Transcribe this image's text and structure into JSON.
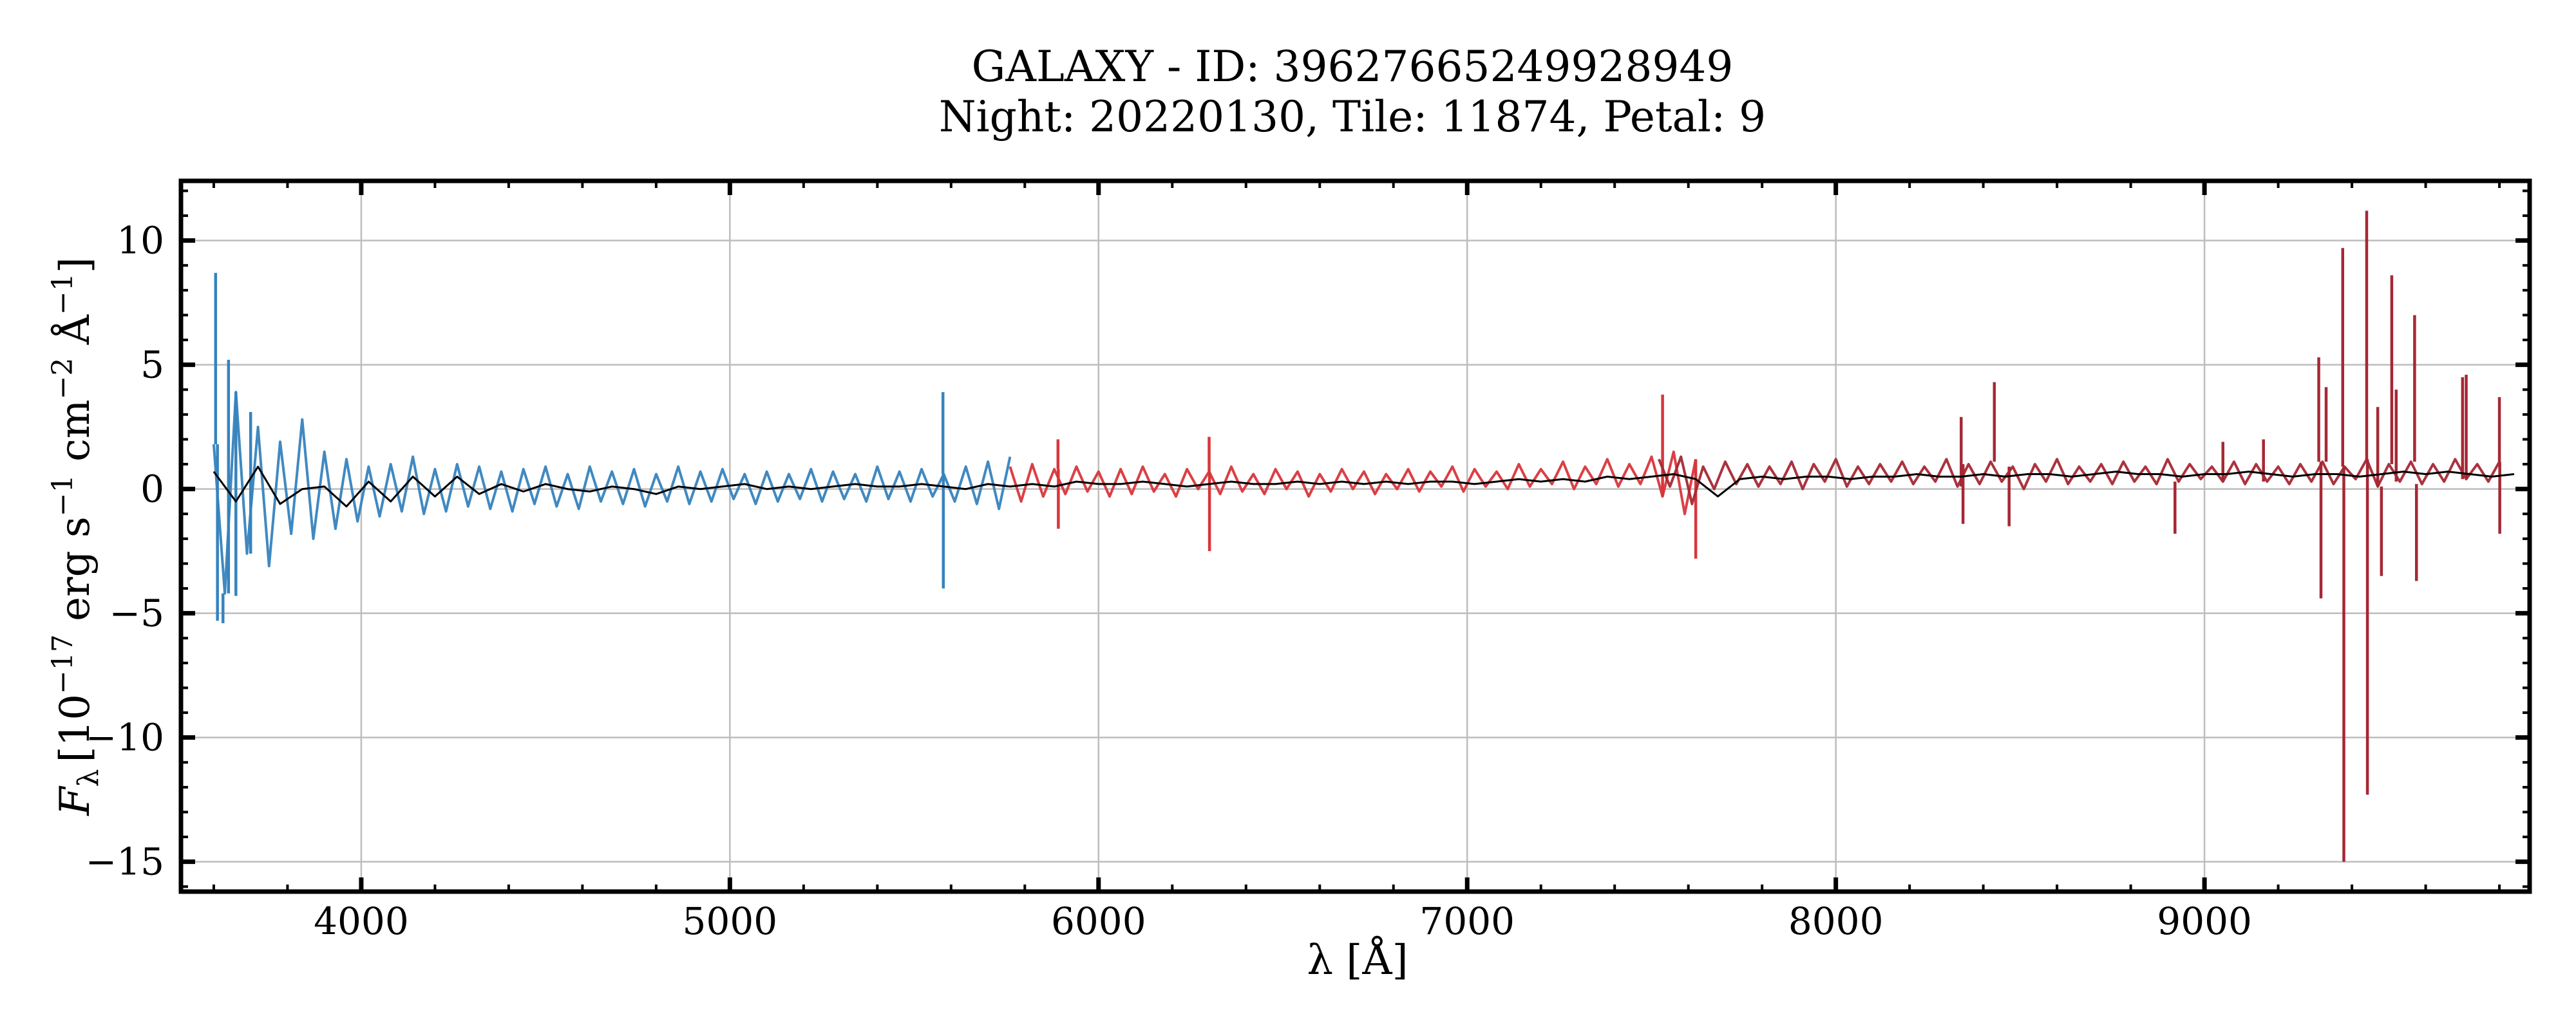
{
  "chart_data": {
    "type": "line",
    "title": "GALAXY - ID: 39627665249928949",
    "subtitle": "Night: 20220130, Tile: 11874, Petal: 9",
    "xlabel": "λ [Å]",
    "ylabel": {
      "symbol": "F",
      "sub": "λ",
      "text": "[10",
      "exp1": "−17",
      "unit1": " erg s",
      "exp2": "−1",
      "unit2": " cm",
      "exp3": "−2",
      "unit3": " Å",
      "exp4": "−1",
      "close": "]"
    },
    "xlim": [
      3511,
      9882
    ],
    "ylim": [
      -16.2,
      12.4
    ],
    "xticks": [
      4000,
      5000,
      6000,
      7000,
      8000,
      9000
    ],
    "xtick_labels": [
      "4000",
      "5000",
      "6000",
      "7000",
      "8000",
      "9000"
    ],
    "yticks": [
      10,
      5,
      0,
      -5,
      -10,
      -15
    ],
    "ytick_labels": [
      "10",
      "5",
      "0",
      "−5",
      "−10",
      "−15"
    ],
    "grid": true,
    "colors": {
      "b": "#3683be",
      "r": "#d8363b",
      "z": "#a52834",
      "model": "#000000",
      "grid": "#bdbdbd"
    },
    "series": [
      {
        "arm": "b",
        "wave_start": 3600,
        "wave_step": 30,
        "flux": [
          1.8,
          -4.2,
          3.9,
          -2.6,
          2.5,
          -3.1,
          1.9,
          -1.8,
          2.8,
          -2.0,
          1.5,
          -1.6,
          1.2,
          -1.3,
          0.9,
          -1.1,
          1.0,
          -0.9,
          1.3,
          -1.0,
          0.8,
          -0.9,
          1.0,
          -0.7,
          0.9,
          -0.8,
          0.7,
          -0.9,
          0.8,
          -0.6,
          0.9,
          -0.7,
          0.6,
          -0.8,
          0.9,
          -0.5,
          0.7,
          -0.6,
          0.8,
          -0.7,
          0.6,
          -0.5,
          0.9,
          -0.6,
          0.7,
          -0.5,
          0.8,
          -0.4,
          0.6,
          -0.6,
          0.7,
          -0.5,
          0.6,
          -0.4,
          0.8,
          -0.5,
          0.7,
          -0.4,
          0.6,
          -0.5,
          0.9,
          -0.4,
          0.7,
          -0.5,
          0.8,
          -0.3,
          0.6,
          -0.5,
          0.9,
          -0.6,
          1.1,
          -0.8,
          1.3
        ],
        "spikes": [
          [
            3605,
            8.7
          ],
          [
            3610,
            -5.3
          ],
          [
            3625,
            -5.4
          ],
          [
            3640,
            5.2
          ],
          [
            3660,
            -4.3
          ],
          [
            3700,
            3.1
          ],
          [
            5578,
            3.9
          ],
          [
            5579,
            -4.0
          ]
        ]
      },
      {
        "arm": "r",
        "wave_start": 5760,
        "wave_step": 30,
        "flux": [
          0.9,
          -0.5,
          1.0,
          -0.3,
          0.8,
          -0.2,
          0.9,
          -0.1,
          0.7,
          -0.3,
          0.8,
          -0.2,
          0.9,
          -0.1,
          0.6,
          -0.3,
          0.8,
          0.0,
          0.7,
          -0.2,
          0.9,
          -0.1,
          0.6,
          -0.2,
          0.8,
          0.0,
          0.7,
          -0.3,
          0.6,
          -0.1,
          0.8,
          0.0,
          0.7,
          -0.2,
          0.6,
          0.0,
          0.8,
          -0.1,
          0.7,
          0.1,
          0.9,
          -0.1,
          0.8,
          0.1,
          0.7,
          0.0,
          1.0,
          0.1,
          0.8,
          0.2,
          1.1,
          0.0,
          0.9,
          0.2,
          1.2,
          0.1,
          1.0,
          0.2,
          1.3,
          -0.3,
          1.5,
          -1.0,
          1.2
        ],
        "spikes": [
          [
            5890,
            2.0
          ],
          [
            5891,
            -1.6
          ],
          [
            6300,
            2.1
          ],
          [
            6301,
            -2.5
          ],
          [
            7530,
            3.8
          ],
          [
            7620,
            -2.8
          ]
        ]
      },
      {
        "arm": "z",
        "wave_start": 7520,
        "wave_step": 30,
        "flux": [
          1.2,
          0.1,
          1.3,
          -0.6,
          0.9,
          0.0,
          1.1,
          0.2,
          1.0,
          0.1,
          0.9,
          0.2,
          1.1,
          0.0,
          1.0,
          0.3,
          1.2,
          0.1,
          0.9,
          0.2,
          1.0,
          0.3,
          1.1,
          0.2,
          0.9,
          0.3,
          1.2,
          0.1,
          1.0,
          0.2,
          1.1,
          0.3,
          0.9,
          0.0,
          1.0,
          0.3,
          1.2,
          0.2,
          0.9,
          0.3,
          1.0,
          0.2,
          1.1,
          0.3,
          0.9,
          0.2,
          1.2,
          0.3,
          1.0,
          0.4,
          0.9,
          0.3,
          1.1,
          0.2,
          1.0,
          0.3,
          0.9,
          0.2,
          1.0,
          0.3,
          1.1,
          0.2,
          0.9,
          0.4,
          1.2,
          0.1,
          1.0,
          0.3,
          1.1,
          0.2,
          1.0,
          0.3,
          1.2,
          0.4,
          1.0,
          0.3,
          1.1
        ],
        "spikes": [
          [
            8340,
            2.9
          ],
          [
            8345,
            -1.4
          ],
          [
            8430,
            4.3
          ],
          [
            8470,
            -1.5
          ],
          [
            8920,
            -1.8
          ],
          [
            9050,
            1.9
          ],
          [
            9160,
            2.0
          ],
          [
            9310,
            5.3
          ],
          [
            9316,
            -4.4
          ],
          [
            9330,
            4.1
          ],
          [
            9375,
            9.7
          ],
          [
            9378,
            -15.0
          ],
          [
            9440,
            11.2
          ],
          [
            9442,
            -12.3
          ],
          [
            9470,
            3.3
          ],
          [
            9480,
            -3.5
          ],
          [
            9508,
            8.6
          ],
          [
            9520,
            4.0
          ],
          [
            9570,
            7.0
          ],
          [
            9575,
            -3.7
          ],
          [
            9700,
            4.5
          ],
          [
            9710,
            4.6
          ],
          [
            9800,
            3.7
          ],
          [
            9801,
            -1.8
          ]
        ]
      }
    ],
    "model": {
      "wave_start": 3600,
      "wave_step": 60,
      "flux": [
        0.7,
        -0.5,
        0.9,
        -0.6,
        0.0,
        0.1,
        -0.7,
        0.3,
        -0.5,
        0.5,
        -0.3,
        0.5,
        -0.2,
        0.2,
        -0.1,
        0.2,
        0.0,
        -0.1,
        0.1,
        0.0,
        -0.2,
        0.1,
        0.0,
        0.1,
        0.2,
        0.0,
        0.1,
        0.0,
        0.1,
        0.2,
        0.1,
        0.1,
        0.2,
        0.1,
        0.0,
        0.2,
        0.1,
        0.2,
        0.1,
        0.3,
        0.2,
        0.2,
        0.3,
        0.2,
        0.1,
        0.2,
        0.3,
        0.2,
        0.2,
        0.3,
        0.2,
        0.3,
        0.2,
        0.3,
        0.2,
        0.3,
        0.3,
        0.2,
        0.3,
        0.4,
        0.3,
        0.4,
        0.3,
        0.5,
        0.4,
        0.5,
        0.6,
        0.4,
        -0.3,
        0.4,
        0.5,
        0.4,
        0.5,
        0.5,
        0.4,
        0.5,
        0.5,
        0.6,
        0.5,
        0.5,
        0.6,
        0.5,
        0.6,
        0.6,
        0.5,
        0.6,
        0.7,
        0.6,
        0.6,
        0.5,
        0.6,
        0.6,
        0.7,
        0.6,
        0.5,
        0.6,
        0.6,
        0.5,
        0.6,
        0.7,
        0.6,
        0.7,
        0.6,
        0.5,
        0.6
      ]
    }
  }
}
